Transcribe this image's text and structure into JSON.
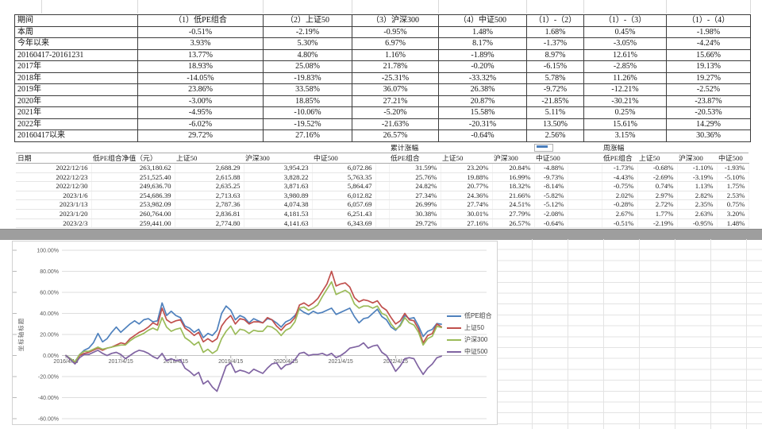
{
  "summary_table": {
    "headers": [
      "期间",
      "（1）低PE组合",
      "（2）上证50",
      "（3）沪深300",
      "（4）中证500",
      "（1）-（2）",
      "（1）-（3）",
      "（1）-（4）"
    ],
    "rows": [
      [
        "本周",
        "-0.51%",
        "-2.19%",
        "-0.95%",
        "1.48%",
        "1.68%",
        "0.45%",
        "-1.98%"
      ],
      [
        "今年以来",
        "3.93%",
        "5.30%",
        "6.97%",
        "8.17%",
        "-1.37%",
        "-3.05%",
        "-4.24%"
      ],
      [
        "20160417-20161231",
        "13.77%",
        "4.80%",
        "1.16%",
        "-1.89%",
        "8.97%",
        "12.61%",
        "15.66%"
      ],
      [
        "2017年",
        "18.93%",
        "25.08%",
        "21.78%",
        "-0.20%",
        "-6.15%",
        "-2.85%",
        "19.13%"
      ],
      [
        "2018年",
        "-14.05%",
        "-19.83%",
        "-25.31%",
        "-33.32%",
        "5.78%",
        "11.26%",
        "19.27%"
      ],
      [
        "2019年",
        "23.86%",
        "33.58%",
        "36.07%",
        "26.38%",
        "-9.72%",
        "-12.21%",
        "-2.52%"
      ],
      [
        "2020年",
        "-3.00%",
        "18.85%",
        "27.21%",
        "20.87%",
        "-21.85%",
        "-30.21%",
        "-23.87%"
      ],
      [
        "2021年",
        "-4.95%",
        "-10.06%",
        "-5.20%",
        "15.58%",
        "5.11%",
        "0.25%",
        "-20.53%"
      ],
      [
        "2022年",
        "-6.02%",
        "-19.52%",
        "-21.63%",
        "-20.31%",
        "13.50%",
        "15.61%",
        "14.29%"
      ],
      [
        "20160417以来",
        "29.72%",
        "27.16%",
        "26.57%",
        "-0.64%",
        "2.56%",
        "3.15%",
        "30.36%"
      ]
    ]
  },
  "detail_table": {
    "group_row": [
      "",
      "",
      "",
      "",
      "",
      "",
      "累计涨幅",
      "",
      "",
      "",
      "",
      "周涨幅",
      "",
      "",
      ""
    ],
    "headers": [
      "日期",
      "低PE组合净值（元）",
      "上证50",
      "沪深300",
      "中证500",
      "",
      "低PE组合",
      "上证50",
      "沪深300",
      "中证500",
      "",
      "低PE组合",
      "上证50",
      "沪深300",
      "中证500"
    ],
    "rows": [
      [
        "2022/12/16",
        "263,180.62",
        "2,688.29",
        "3,954.23",
        "6,072.86",
        "",
        "31.59%",
        "23.20%",
        "20.84%",
        "-4.88%",
        "",
        "-1.73%",
        "-0.68%",
        "-1.10%",
        "-1.93%"
      ],
      [
        "2022/12/23",
        "251,525.40",
        "2,615.88",
        "3,828.22",
        "5,763.35",
        "",
        "25.76%",
        "19.88%",
        "16.99%",
        "-9.73%",
        "",
        "-4.43%",
        "-2.69%",
        "-3.19%",
        "-5.10%"
      ],
      [
        "2022/12/30",
        "249,636.70",
        "2,635.25",
        "3,871.63",
        "5,864.47",
        "",
        "24.82%",
        "20.77%",
        "18.32%",
        "-8.14%",
        "",
        "-0.75%",
        "0.74%",
        "1.13%",
        "1.75%"
      ],
      [
        "2023/1/6",
        "254,686.39",
        "2,713.63",
        "3,980.89",
        "6,012.82",
        "",
        "27.34%",
        "24.36%",
        "21.66%",
        "-5.82%",
        "",
        "2.02%",
        "2.97%",
        "2.82%",
        "2.53%"
      ],
      [
        "2023/1/13",
        "253,982.09",
        "2,787.36",
        "4,074.38",
        "6,057.69",
        "",
        "26.99%",
        "27.74%",
        "24.51%",
        "-5.12%",
        "",
        "-0.28%",
        "2.72%",
        "2.35%",
        "0.75%"
      ],
      [
        "2023/1/20",
        "260,764.00",
        "2,836.81",
        "4,181.53",
        "6,251.43",
        "",
        "30.38%",
        "30.01%",
        "27.79%",
        "-2.08%",
        "",
        "2.67%",
        "1.77%",
        "2.63%",
        "3.20%"
      ],
      [
        "2023/2/3",
        "259,441.00",
        "2,774.80",
        "4,141.63",
        "6,343.69",
        "",
        "29.72%",
        "27.16%",
        "26.57%",
        "-0.64%",
        "",
        "-0.51%",
        "-2.19%",
        "-0.95%",
        "1.48%"
      ]
    ]
  },
  "chart_data": {
    "type": "line",
    "title": "",
    "y_axis_title": "坐标轴标题",
    "x_unit": "months since 2016/4 (weekly cumulative return series)",
    "ylim": [
      -60,
      100
    ],
    "grid": true,
    "legend_position": "right-inside",
    "y_ticks": [
      {
        "label": "100.00%",
        "value": 100
      },
      {
        "label": "80.00%",
        "value": 80
      },
      {
        "label": "60.00%",
        "value": 60
      },
      {
        "label": "40.00%",
        "value": 40
      },
      {
        "label": "20.00%",
        "value": 20
      },
      {
        "label": "0.00%",
        "value": 0
      },
      {
        "label": "-20.00%",
        "value": -20
      },
      {
        "label": "-40.00%",
        "value": -40
      },
      {
        "label": "-60.00%",
        "value": -60
      }
    ],
    "x_ticks": [
      {
        "label": "2016/4/15",
        "month": 0
      },
      {
        "label": "2017/4/15",
        "month": 12
      },
      {
        "label": "2018/4/15",
        "month": 24
      },
      {
        "label": "2019/4/15",
        "month": 36
      },
      {
        "label": "2020/4/15",
        "month": 48
      },
      {
        "label": "2021/4/15",
        "month": 60
      },
      {
        "label": "2022/4/15",
        "month": 72
      }
    ],
    "series": [
      {
        "name": "低PE组合",
        "color": "#4F81BD",
        "values": [
          0,
          -3,
          -6,
          1,
          5,
          7,
          12,
          21,
          13,
          16,
          22,
          27,
          22,
          26,
          30,
          33,
          30,
          34,
          35,
          32,
          33,
          50,
          38,
          42,
          38,
          36,
          28,
          26,
          22,
          25,
          17,
          21,
          19,
          24,
          40,
          47,
          43,
          34,
          38,
          36,
          31,
          35,
          33,
          31,
          35,
          34,
          31,
          27,
          32,
          34,
          38,
          44,
          41,
          39,
          42,
          40,
          41,
          43,
          45,
          39,
          41,
          43,
          45,
          37,
          31,
          35,
          36,
          40,
          44,
          37,
          34,
          27,
          24,
          29,
          38,
          35,
          36,
          28,
          18,
          23,
          24.8,
          30.4,
          29.7
        ]
      },
      {
        "name": "上证50",
        "color": "#C0504D",
        "values": [
          0,
          -4,
          -7,
          0,
          2,
          3,
          5,
          7,
          5,
          7,
          8,
          10,
          12,
          11,
          16,
          19,
          22,
          24,
          27,
          31,
          29,
          45,
          34,
          31,
          33,
          34,
          26,
          23,
          19,
          22,
          13,
          16,
          13,
          16,
          28,
          34,
          38,
          30,
          35,
          34,
          30,
          32,
          32,
          31,
          36,
          34,
          28,
          24,
          29,
          31,
          36,
          48,
          50,
          47,
          50,
          54,
          61,
          68,
          80,
          66,
          68,
          69,
          65,
          55,
          51,
          53,
          52,
          50,
          52,
          46,
          43,
          36,
          30,
          33,
          40,
          34,
          33,
          25,
          12,
          19,
          20.8,
          30.0,
          27.2
        ]
      },
      {
        "name": "沪深300",
        "color": "#9BBB59",
        "values": [
          0,
          -3,
          -6,
          1,
          4,
          4,
          6,
          8,
          6,
          7,
          8,
          9,
          10,
          10,
          14,
          17,
          19,
          21,
          24,
          26,
          24,
          36,
          27,
          23,
          25,
          26,
          17,
          14,
          10,
          13,
          3,
          6,
          2,
          5,
          16,
          23,
          28,
          20,
          25,
          24,
          21,
          24,
          23,
          23,
          28,
          27,
          24,
          19,
          24,
          26,
          32,
          45,
          46,
          43,
          45,
          48,
          56,
          63,
          70,
          58,
          60,
          62,
          59,
          49,
          45,
          47,
          47,
          45,
          47,
          40,
          38,
          30,
          25,
          28,
          36,
          31,
          29,
          22,
          10,
          16,
          18.3,
          27.8,
          26.6
        ]
      },
      {
        "name": "中证500",
        "color": "#8064A2",
        "values": [
          0,
          -4,
          -8,
          -2,
          1,
          1,
          3,
          5,
          2,
          0,
          2,
          3,
          1,
          -3,
          0,
          3,
          5,
          4,
          2,
          -1,
          -3,
          2,
          -5,
          -3,
          -5,
          -4,
          -12,
          -15,
          -19,
          -16,
          -27,
          -24,
          -30,
          -34,
          -22,
          -10,
          -7,
          -16,
          -14,
          -15,
          -17,
          -13,
          -15,
          -17,
          -12,
          -8,
          -7,
          -13,
          -9,
          -8,
          -4,
          2,
          3,
          0,
          1,
          1,
          2,
          0,
          2,
          -2,
          0,
          3,
          7,
          8,
          9,
          12,
          7,
          9,
          10,
          3,
          0,
          -7,
          -15,
          -10,
          -3,
          -2,
          -3,
          -11,
          -18,
          -12,
          -8.1,
          -2.1,
          -0.6
        ]
      }
    ]
  },
  "colors": {
    "divider_band": "#9e9e9e",
    "chart_grid_line": "#dedede",
    "series_blue": "#4F81BD",
    "series_red": "#C0504D",
    "series_green": "#9BBB59",
    "series_purple": "#8064A2"
  }
}
